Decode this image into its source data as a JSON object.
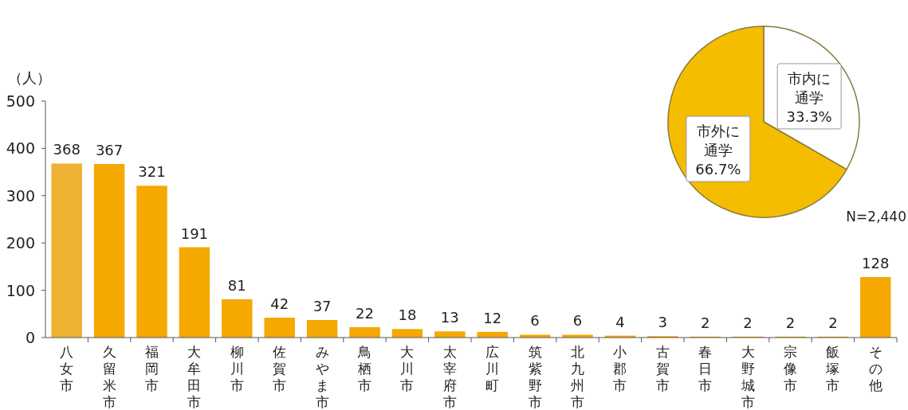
{
  "chart_data": [
    {
      "type": "bar",
      "ylabel": "（人）",
      "categories": [
        "八女市",
        "久留米市",
        "福岡市",
        "大牟田市",
        "柳川市",
        "佐賀市",
        "みやま市",
        "鳥栖市",
        "大川市",
        "太宰府市",
        "広川町",
        "筑紫野市",
        "北九州市",
        "小郡市",
        "古賀市",
        "春日市",
        "大野城市",
        "宗像市",
        "飯塚市",
        "その他"
      ],
      "values": [
        368,
        367,
        321,
        191,
        81,
        42,
        37,
        22,
        18,
        13,
        12,
        6,
        6,
        4,
        3,
        2,
        2,
        2,
        2,
        128
      ],
      "colors": [
        "#efb132",
        "#f5a800",
        "#f5a800",
        "#f5a800",
        "#f5a800",
        "#f5a800",
        "#f5a800",
        "#f5a800",
        "#f5a800",
        "#f5a800",
        "#f5a800",
        "#f5a800",
        "#f5a800",
        "#f5a800",
        "#f5a800",
        "#f5a800",
        "#f5a800",
        "#f5a800",
        "#f5a800",
        "#f5a800"
      ],
      "ylim": [
        0,
        500
      ],
      "yticks": [
        0,
        100,
        200,
        300,
        400,
        500
      ],
      "data_labels": true
    },
    {
      "type": "pie",
      "categories": [
        "市内に通学",
        "市外に通学"
      ],
      "values": [
        33.3,
        66.7
      ],
      "colors": [
        "#ffffff",
        "#f5bd00"
      ],
      "value_labels": [
        "33.3%",
        "66.7%"
      ],
      "annotations": [
        "N=2,440"
      ]
    }
  ]
}
